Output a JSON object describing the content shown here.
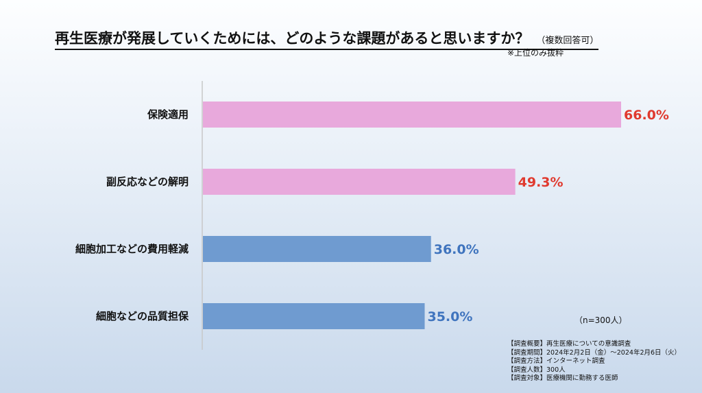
{
  "title": "再生医療が発展していくためには、どのような課題があると思いますか？",
  "title_note": "（複数回答可）",
  "excerpt_note": "※上位のみ抜粋",
  "sample_size": "（n=300人）",
  "survey_info": [
    "【調査概要】再生医療についての意識調査",
    "【調査期間】2024年2月2日（金）～2024年2月6日（火）",
    "【調査方法】インターネット調査",
    "【調査人数】300人",
    "【調査対象】医療機関に勤務する医師"
  ],
  "colors": {
    "pink_bar": "#e8a9dc",
    "blue_bar": "#6f9bd0",
    "red_label": "#e03a2f",
    "blue_label": "#3f74be"
  },
  "chart_data": {
    "type": "bar",
    "orientation": "horizontal",
    "categories": [
      "保険適用",
      "副反応などの解明",
      "細胞加工などの費用軽減",
      "細胞などの品質担保"
    ],
    "values": [
      66.0,
      49.3,
      36.0,
      35.0
    ],
    "value_labels": [
      "66.0%",
      "49.3%",
      "36.0%",
      "35.0%"
    ],
    "bar_colors": [
      "#e8a9dc",
      "#e8a9dc",
      "#6f9bd0",
      "#6f9bd0"
    ],
    "label_colors": [
      "#e03a2f",
      "#e03a2f",
      "#3f74be",
      "#3f74be"
    ],
    "unit": "%",
    "xlim": [
      0,
      66.0
    ],
    "grid": false,
    "legend": "none"
  }
}
